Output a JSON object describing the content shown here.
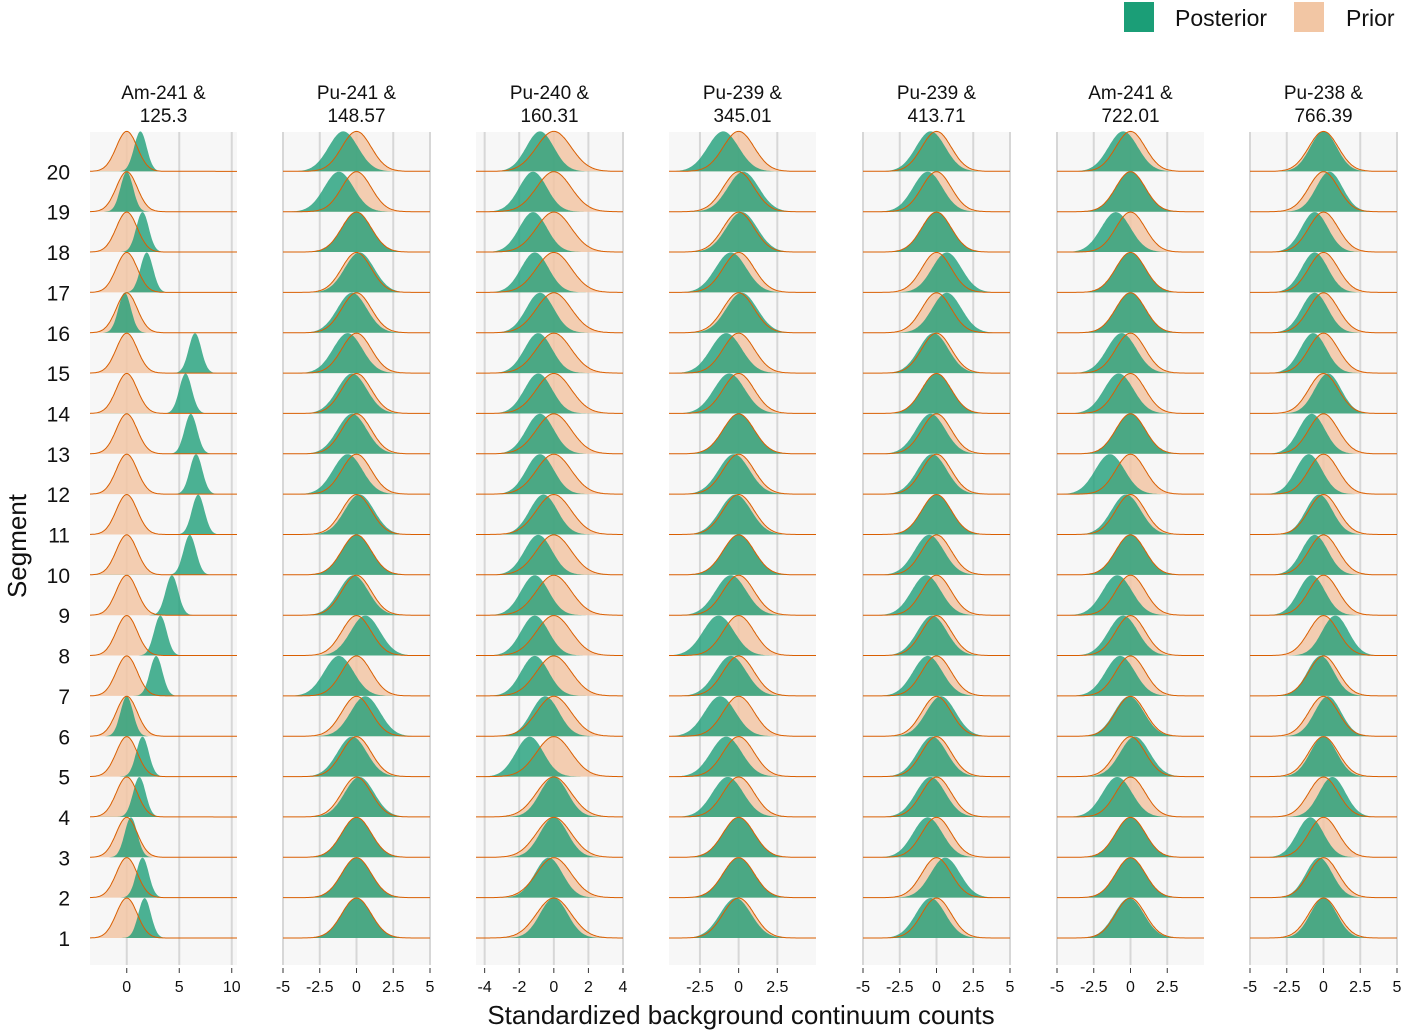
{
  "chart_data": {
    "type": "ridgeline",
    "xlabel": "Standardized background continuum counts",
    "ylabel": "Segment",
    "segments": [
      "1",
      "2",
      "3",
      "4",
      "5",
      "6",
      "7",
      "8",
      "9",
      "10",
      "11",
      "12",
      "13",
      "14",
      "15",
      "16",
      "17",
      "18",
      "19",
      "20"
    ],
    "legend": {
      "placement": "top-right",
      "items": [
        {
          "key": "posterior",
          "label": "Posterior",
          "color": "#1b9e77"
        },
        {
          "key": "prior",
          "label": "Prior",
          "color": "#f2c6a4",
          "line": "#d95f02"
        }
      ]
    },
    "grid": true,
    "prior": {
      "mean": 0,
      "sd": 1
    },
    "panels": [
      {
        "title_line1": "Am-241 &",
        "title_line2": "125.3",
        "xlim": [
          -3.5,
          10.5
        ],
        "xticks": [
          0,
          5,
          10
        ],
        "xtick_labels": [
          "0",
          "5",
          "10"
        ],
        "posterior_means": [
          1.7,
          1.5,
          0.4,
          1.2,
          1.5,
          0,
          2.8,
          3.2,
          4.3,
          6.0,
          6.8,
          6.6,
          6.1,
          5.6,
          6.5,
          -0.2,
          1.9,
          1.5,
          0,
          1.3
        ],
        "posterior_sd": 0.6
      },
      {
        "title_line1": "Pu-241 &",
        "title_line2": "148.57",
        "xlim": [
          -5,
          5
        ],
        "xticks": [
          -5,
          -2.5,
          0,
          2.5,
          5
        ],
        "xtick_labels": [
          "-5",
          "-2.5",
          "0",
          "2.5",
          "5"
        ],
        "posterior_means": [
          0,
          0,
          0,
          0.2,
          -0.3,
          0.6,
          -1.2,
          0.6,
          -0.2,
          0,
          0.2,
          -0.6,
          -0.3,
          -0.3,
          -0.6,
          -0.3,
          0.2,
          0,
          -1.2,
          -0.9
        ],
        "posterior_sd": 1
      },
      {
        "title_line1": "Pu-240 &",
        "title_line2": "160.31",
        "xlim": [
          -4.5,
          4
        ],
        "xticks": [
          -4,
          -2,
          0,
          2,
          4
        ],
        "xtick_labels": [
          "-4",
          "-2",
          "0",
          "2",
          "4"
        ],
        "posterior_means": [
          0,
          -0.3,
          0,
          0,
          -1.4,
          -0.5,
          -1.1,
          -1.1,
          -1.1,
          -0.9,
          -0.6,
          -0.8,
          -0.8,
          -0.9,
          -0.9,
          -0.8,
          -1.1,
          -1.2,
          -1.2,
          -0.8
        ],
        "posterior_sd": 0.8
      },
      {
        "title_line1": "Pu-239 &",
        "title_line2": "345.01",
        "xlim": [
          -4.5,
          5
        ],
        "xticks": [
          -2.5,
          0,
          2.5
        ],
        "xtick_labels": [
          "-2.5",
          "0",
          "2.5"
        ],
        "posterior_means": [
          -0.2,
          0,
          0,
          -0.7,
          -0.8,
          -1.2,
          -0.5,
          -1.3,
          -0.5,
          0,
          -0.2,
          -0.3,
          0,
          -0.6,
          -0.8,
          0.2,
          -0.5,
          0.2,
          0.3,
          -1.0
        ],
        "posterior_sd": 1
      },
      {
        "title_line1": "Pu-239 &",
        "title_line2": "413.71",
        "xlim": [
          -5,
          5
        ],
        "xticks": [
          -5,
          -2.5,
          0,
          2.5,
          5
        ],
        "xtick_labels": [
          "-5",
          "-2.5",
          "0",
          "2.5",
          "5"
        ],
        "posterior_means": [
          -0.4,
          0.6,
          -0.6,
          -0.4,
          -0.3,
          0.3,
          -0.6,
          -0.3,
          -0.7,
          -0.5,
          0,
          -0.3,
          -0.4,
          0,
          -0.2,
          0.7,
          0.7,
          0,
          -0.6,
          -0.4
        ],
        "posterior_sd": 1
      },
      {
        "title_line1": "Am-241 &",
        "title_line2": "722.01",
        "xlim": [
          -5,
          5
        ],
        "xticks": [
          -5,
          -2.5,
          0,
          2.5
        ],
        "xtick_labels": [
          "-5",
          "-2.5",
          "0",
          "2.5"
        ],
        "posterior_means": [
          -0.1,
          0,
          0,
          -0.9,
          0.3,
          -0.1,
          -0.7,
          -0.5,
          -0.9,
          0,
          -0.3,
          -1.4,
          0,
          -0.8,
          -0.6,
          0,
          0,
          -1.0,
          0,
          -0.5
        ],
        "posterior_sd": 1
      },
      {
        "title_line1": "Pu-238 &",
        "title_line2": "766.39",
        "xlim": [
          -5,
          5
        ],
        "xticks": [
          -5,
          -2.5,
          0,
          2.5,
          5
        ],
        "xtick_labels": [
          "-5",
          "-2.5",
          "0",
          "2.5",
          "5"
        ],
        "posterior_means": [
          0,
          -0.3,
          -0.9,
          0.6,
          0,
          0.3,
          -0.2,
          0.8,
          -0.8,
          -0.6,
          -0.3,
          -1.0,
          -0.8,
          0.3,
          -0.7,
          -0.6,
          -0.6,
          -0.6,
          0.4,
          0
        ],
        "posterior_sd": 0.9
      }
    ]
  }
}
